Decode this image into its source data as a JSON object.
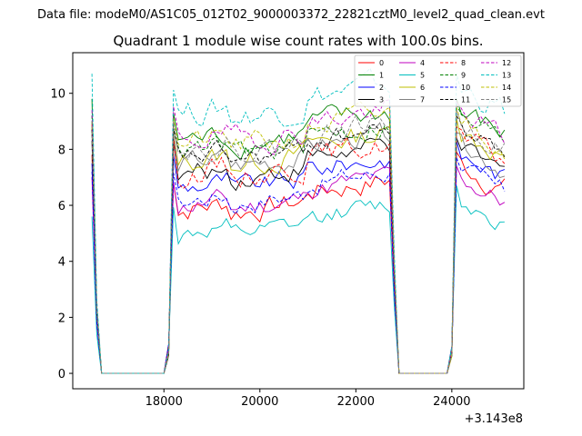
{
  "figure": {
    "suptitle": "Data file: modeM0/AS1C05_012T02_9000003372_22821cztM0_level2_quad_clean.evt"
  },
  "chart_data": {
    "type": "line",
    "title": "Quadrant 1 module wise count rates with 100.0s bins.",
    "xlabel": "",
    "ylabel": "",
    "x_offset_label": "+3.143e8",
    "xlim": [
      16100,
      25500
    ],
    "ylim": [
      -0.55,
      11.45
    ],
    "xticks": [
      18000,
      20000,
      22000,
      24000
    ],
    "xtick_labels": [
      "18000",
      "20000",
      "22000",
      "24000"
    ],
    "yticks": [
      0,
      2,
      4,
      6,
      8,
      10
    ],
    "ytick_labels": [
      "0",
      "2",
      "4",
      "6",
      "8",
      "10"
    ],
    "grid": false,
    "legend_position": "top-right",
    "legend_columns": 4,
    "x_start": 16500,
    "x_step": 100,
    "series": [
      {
        "name": "0",
        "color": "#ff0000",
        "dash": "solid",
        "level": 6.3,
        "spread": 0.45,
        "seg3": 7.1,
        "first": 7.8
      },
      {
        "name": "1",
        "color": "#008000",
        "dash": "solid",
        "level": 8.7,
        "spread": 0.45,
        "seg3": 9.0,
        "first": 9.8
      },
      {
        "name": "2",
        "color": "#0000ff",
        "dash": "solid",
        "level": 7.1,
        "spread": 0.4,
        "seg3": 7.5,
        "first": 7.5
      },
      {
        "name": "3",
        "color": "#000000",
        "dash": "solid",
        "level": 7.5,
        "spread": 0.4,
        "seg3": 7.6,
        "first": 8.3
      },
      {
        "name": "4",
        "color": "#bf00bf",
        "dash": "solid",
        "level": 6.4,
        "spread": 0.4,
        "seg3": 6.6,
        "first": 7.0
      },
      {
        "name": "5",
        "color": "#00bfbf",
        "dash": "solid",
        "level": 5.4,
        "spread": 0.35,
        "seg3": 5.9,
        "first": 5.6
      },
      {
        "name": "6",
        "color": "#bfbf00",
        "dash": "solid",
        "level": 8.0,
        "spread": 0.45,
        "seg3": 8.3,
        "first": 8.8
      },
      {
        "name": "7",
        "color": "#808080",
        "dash": "solid",
        "level": 7.9,
        "spread": 0.4,
        "seg3": 7.8,
        "first": 8.6
      },
      {
        "name": "8",
        "color": "#ff0000",
        "dash": "dashed",
        "level": 7.6,
        "spread": 0.45,
        "seg3": 8.0,
        "first": 8.9
      },
      {
        "name": "9",
        "color": "#008000",
        "dash": "dashed",
        "level": 8.3,
        "spread": 0.45,
        "seg3": 8.8,
        "first": 9.2
      },
      {
        "name": "10",
        "color": "#0000ff",
        "dash": "dashed",
        "level": 6.6,
        "spread": 0.4,
        "seg3": 6.9,
        "first": 7.2
      },
      {
        "name": "11",
        "color": "#000000",
        "dash": "dashed",
        "level": 8.1,
        "spread": 0.4,
        "seg3": 8.4,
        "first": 8.7
      },
      {
        "name": "12",
        "color": "#bf00bf",
        "dash": "dashed",
        "level": 8.8,
        "spread": 0.45,
        "seg3": 8.9,
        "first": 9.4
      },
      {
        "name": "13",
        "color": "#00bfbf",
        "dash": "dashed",
        "level": 9.7,
        "spread": 0.5,
        "seg3": 9.9,
        "first": 10.7
      },
      {
        "name": "14",
        "color": "#bfbf00",
        "dash": "dashed",
        "level": 8.6,
        "spread": 0.45,
        "seg3": 8.7,
        "first": 9.0
      },
      {
        "name": "15",
        "color": "#808080",
        "dash": "dashed",
        "level": 8.4,
        "spread": 0.4,
        "seg3": 8.6,
        "first": 9.0
      }
    ]
  }
}
